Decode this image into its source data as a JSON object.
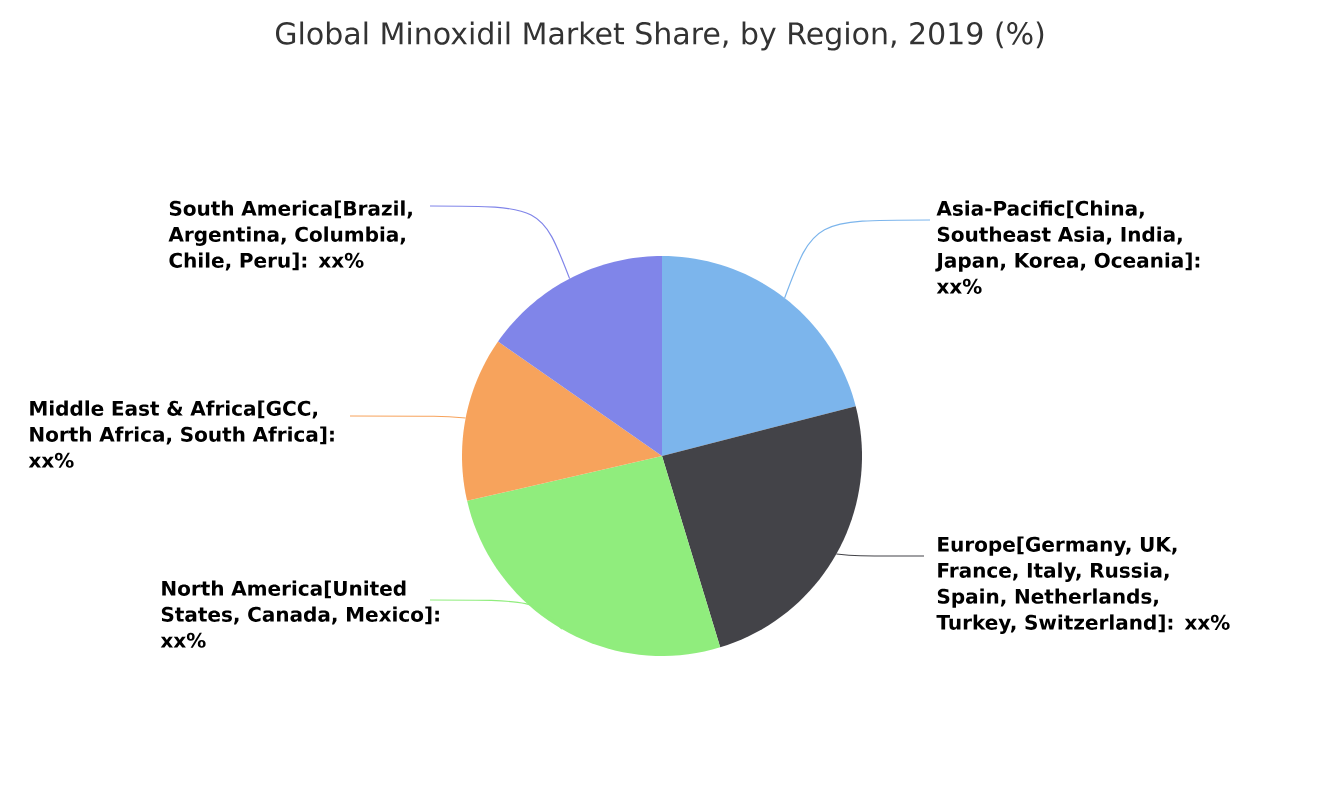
{
  "chart_data": {
    "type": "pie",
    "title": "Global Minoxidil Market Share, by Region, 2019 (%)",
    "categories": [
      "Asia-Pacific[China, Southeast Asia, India, Japan, Korea, Oceania]: xx%",
      "Europe[Germany, UK, France, Italy, Russia, Spain, Netherlands, Turkey, Switzerland]: xx%",
      "North America[United States, Canada, Mexico]: xx%",
      "Middle East & Africa[GCC, North Africa, South Africa]: xx%",
      "South America[Brazil, Argentina, Columbia, Chile, Peru]: xx%"
    ],
    "values": [
      21,
      24.3,
      26.1,
      13.3,
      15.3
    ],
    "colors": [
      "#7cb5ec",
      "#434348",
      "#90ed7d",
      "#f7a35c",
      "#8085e9"
    ]
  }
}
